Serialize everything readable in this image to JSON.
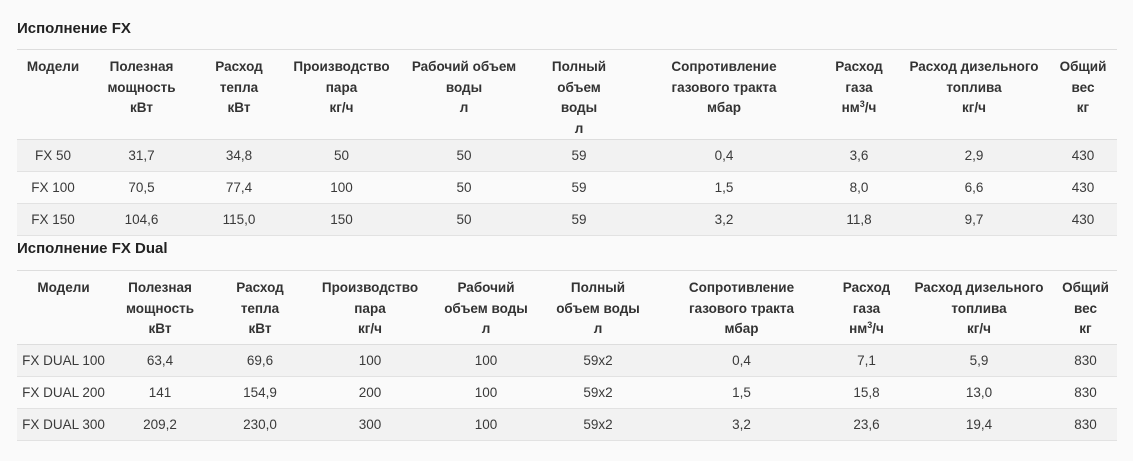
{
  "sections": [
    {
      "title": "Исполнение FX",
      "headers": [
        [
          "Модели"
        ],
        [
          "Полезная",
          "мощность",
          "кВт"
        ],
        [
          "Расход",
          "тепла",
          "кВт"
        ],
        [
          "Производство",
          "пара",
          "кг/ч"
        ],
        [
          "Рабочий объем",
          "воды",
          "л"
        ],
        [
          "Полный объем",
          "воды",
          "л"
        ],
        [
          "Сопротивление",
          "газового тракта",
          "мбар"
        ],
        [
          "Расход",
          "газа",
          "нм3/ч"
        ],
        [
          "Расход дизельного",
          "топлива",
          "кг/ч"
        ],
        [
          "Общий",
          "вес",
          "кг"
        ]
      ],
      "rows": [
        [
          "FX 50",
          "31,7",
          "34,8",
          "50",
          "50",
          "59",
          "0,4",
          "3,6",
          "2,9",
          "430"
        ],
        [
          "FX 100",
          "70,5",
          "77,4",
          "100",
          "50",
          "59",
          "1,5",
          "8,0",
          "6,6",
          "430"
        ],
        [
          "FX 150",
          "104,6",
          "115,0",
          "150",
          "50",
          "59",
          "3,2",
          "11,8",
          "9,7",
          "430"
        ]
      ]
    },
    {
      "title": "Исполнение FX Dual",
      "headers": [
        [
          "Модели"
        ],
        [
          "Полезная",
          "мощность",
          "кВт"
        ],
        [
          "Расход",
          "тепла",
          "кВт"
        ],
        [
          "Производство",
          "пара",
          "кг/ч"
        ],
        [
          "Рабочий",
          "объем воды",
          "л"
        ],
        [
          "Полный",
          "объем воды",
          "л"
        ],
        [
          "Сопротивление",
          "газового тракта",
          "мбар"
        ],
        [
          "Расход",
          "газа",
          "нм3/ч"
        ],
        [
          "Расход дизельного",
          "топлива",
          "кг/ч"
        ],
        [
          "Общий",
          "вес",
          "кг"
        ]
      ],
      "rows": [
        [
          "FX DUAL 100",
          "63,4",
          "69,6",
          "100",
          "100",
          "59x2",
          "0,4",
          "7,1",
          "5,9",
          "830"
        ],
        [
          "FX DUAL 200",
          "141",
          "154,9",
          "200",
          "100",
          "59x2",
          "1,5",
          "15,8",
          "13,0",
          "830"
        ],
        [
          "FX DUAL 300",
          "209,2",
          "230,0",
          "300",
          "100",
          "59x2",
          "3,2",
          "23,6",
          "19,4",
          "830"
        ]
      ]
    }
  ]
}
